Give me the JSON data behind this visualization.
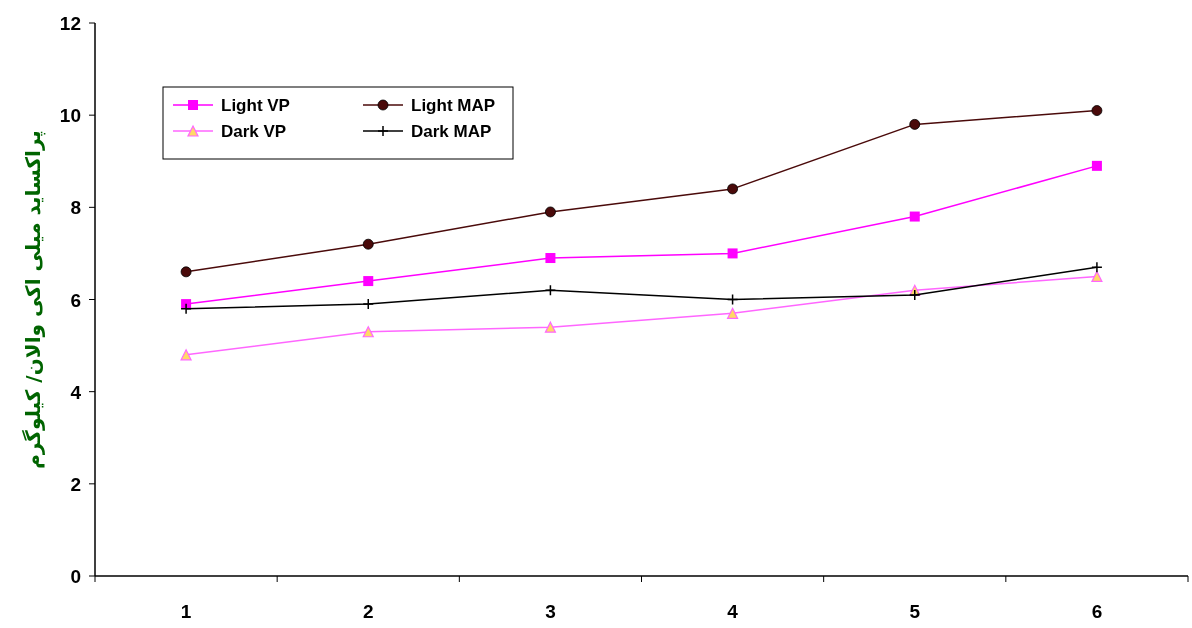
{
  "chart_data": {
    "type": "line",
    "ylabel": "پراکساید  میلی اکی والان/ کیلوگرم",
    "categories": [
      "1",
      "2",
      "3",
      "4",
      "5",
      "6"
    ],
    "series": [
      {
        "name": "Light VP",
        "color": "#ff00ff",
        "marker": "square",
        "values": [
          5.9,
          6.4,
          6.9,
          7.0,
          7.8,
          8.9
        ]
      },
      {
        "name": "Light MAP",
        "color": "#4a0a0a",
        "marker": "circle",
        "values": [
          6.6,
          7.2,
          7.9,
          8.4,
          9.8,
          10.1
        ]
      },
      {
        "name": "Dark VP",
        "color": "#ff66ff",
        "marker": "triangle",
        "values": [
          4.8,
          5.3,
          5.4,
          5.7,
          6.2,
          6.5
        ]
      },
      {
        "name": "Dark MAP",
        "color": "#000000",
        "marker": "cross",
        "values": [
          5.8,
          5.9,
          6.2,
          6.0,
          6.1,
          6.7
        ]
      }
    ],
    "ylim": [
      0,
      12
    ],
    "yticks": [
      0,
      2,
      4,
      6,
      8,
      10,
      12
    ],
    "grid": false,
    "legend": "top left"
  }
}
